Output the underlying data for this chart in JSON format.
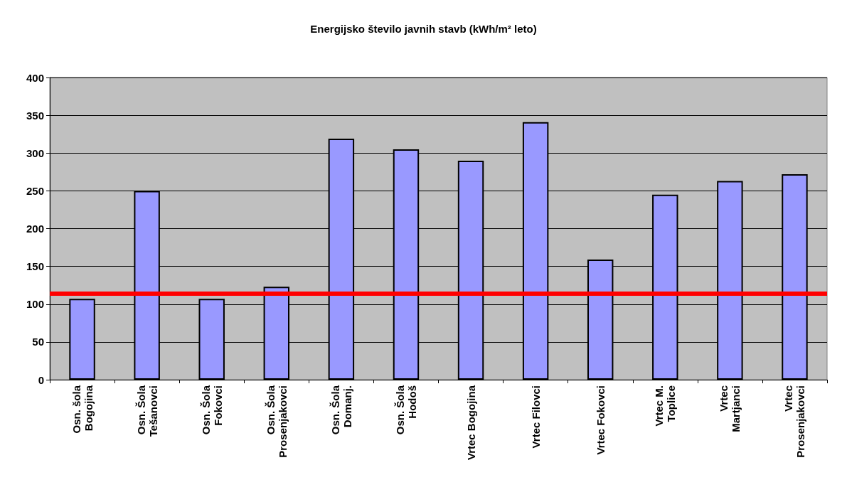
{
  "chart_data": {
    "type": "bar",
    "title": "Energijsko število javnih stavb (kWh/m² leto)",
    "categories": [
      "Osn. šola\nBogojina",
      "Osn. Šola\nTešanovci",
      "Osn. Šola\nFokovci",
      "Osn. Šola\nProsenjakovci",
      "Osn. Šola\nDomanj.",
      "Osn. Šola\nHodoš",
      "Vrtec Bogojina",
      "Vrtec Filovci",
      "Vrtec Fokovci",
      "Vrtec M.\nToplice",
      "Vrtec\nMartjanci",
      "Vrtec\nProsenjakovci"
    ],
    "values": [
      107,
      250,
      107,
      123,
      319,
      305,
      290,
      341,
      159,
      245,
      263,
      272
    ],
    "color": "#9999ff",
    "ylim": [
      0,
      400
    ],
    "yticks": [
      0,
      50,
      100,
      150,
      200,
      250,
      300,
      350,
      400
    ],
    "grid": "y",
    "ref_lines": [
      {
        "axis": "y",
        "value": 114,
        "color": "#ff0000"
      }
    ]
  }
}
